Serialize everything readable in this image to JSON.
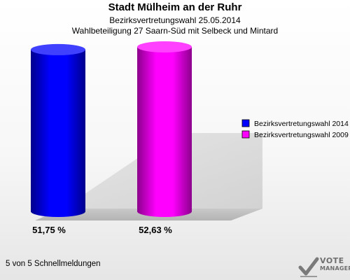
{
  "header": {
    "title": "Stadt Mülheim an der Ruhr",
    "subtitle_line1": "Bezirksvertretungswahl 25.05.2014",
    "subtitle_line2": "Wahlbeteiligung 27 Saarn-Süd mit Selbeck und Mintard"
  },
  "chart_data": {
    "type": "bar",
    "categories": [
      "Bezirksvertretungswahl 2014",
      "Bezirksvertretungswahl 2009"
    ],
    "values": [
      51.75,
      52.63
    ],
    "data_labels": [
      "51,75 %",
      "52,63 %"
    ],
    "colors": [
      "#0000ff",
      "#ff00ff"
    ],
    "ylim": [
      0,
      52.63
    ],
    "legend": {
      "position": "right",
      "entries": [
        {
          "label": "Bezirksvertretungswahl 2014",
          "color": "#0000ff"
        },
        {
          "label": "Bezirksvertretungswahl 2009",
          "color": "#ff00ff"
        }
      ]
    },
    "grid": false,
    "style": "3d-cylinder"
  },
  "footer": {
    "text": "5 von 5 Schnellmeldungen"
  },
  "logo": {
    "line1": "VOTE",
    "line2": "MANAGER",
    "icon": "check-mark-icon"
  }
}
